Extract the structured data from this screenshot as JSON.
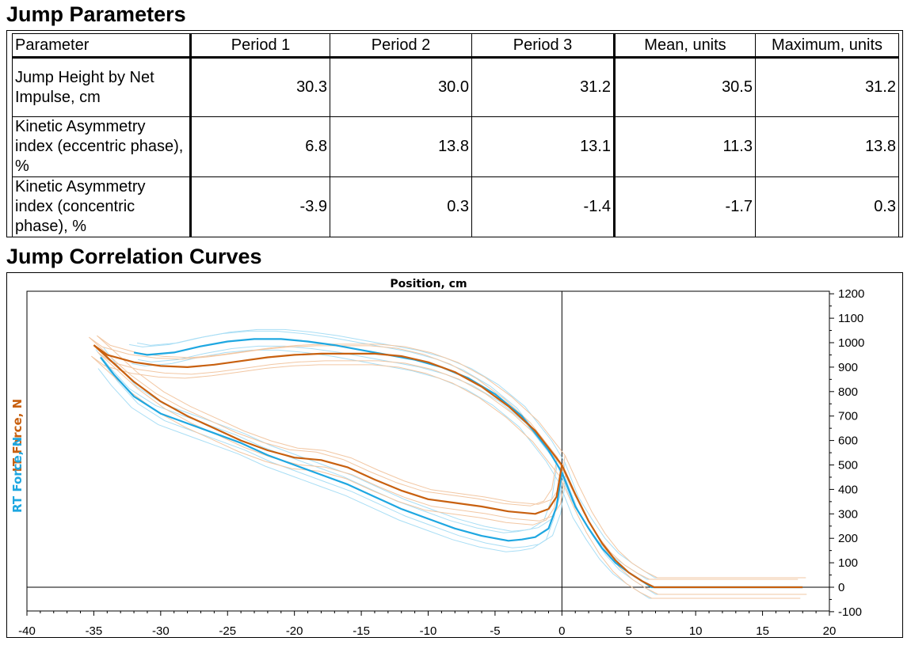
{
  "section1_title": "Jump Parameters",
  "section2_title": "Jump Correlation Curves",
  "table": {
    "headers": [
      "Parameter",
      "Period 1",
      "Period 2",
      "Period 3",
      "Mean, units",
      "Maximum, units"
    ],
    "rows": [
      {
        "label": "Jump Height by Net Impulse, cm",
        "values": [
          "30.3",
          "30.0",
          "31.2",
          "30.5",
          "31.2"
        ]
      },
      {
        "label": "Kinetic Asymmetry index (eccentric phase), %",
        "values": [
          "6.8",
          "13.8",
          "13.1",
          "11.3",
          "13.8"
        ]
      },
      {
        "label": "Kinetic Asymmetry index (concentric phase), %",
        "values": [
          "-3.9",
          "0.3",
          "-1.4",
          "-1.7",
          "0.3"
        ]
      }
    ]
  },
  "chart_data": {
    "type": "line",
    "title": "Position, cm",
    "ylabel_rt": "RT Force, N",
    "ylabel_lt": "LT Force, N",
    "xlim": [
      -40,
      20
    ],
    "ylim": [
      -100,
      1200
    ],
    "x_ticks": [
      -40,
      -35,
      -30,
      -25,
      -20,
      -15,
      -10,
      -5,
      0,
      5,
      10,
      15,
      20
    ],
    "y_ticks": [
      -100,
      0,
      100,
      200,
      300,
      400,
      500,
      600,
      700,
      800,
      900,
      1000,
      1100,
      1200
    ],
    "colors": {
      "rt": "#1ea7e1",
      "lt": "#c8600f",
      "rt_light": "#a9def5",
      "lt_light": "#f2c7a3"
    },
    "series": [
      {
        "name": "RT Force, N",
        "points": [
          [
            -32,
            960
          ],
          [
            -31,
            950
          ],
          [
            -29,
            960
          ],
          [
            -27,
            985
          ],
          [
            -25,
            1005
          ],
          [
            -23,
            1015
          ],
          [
            -21,
            1015
          ],
          [
            -19,
            1005
          ],
          [
            -17,
            990
          ],
          [
            -15,
            970
          ],
          [
            -13,
            950
          ],
          [
            -11,
            930
          ],
          [
            -9,
            900
          ],
          [
            -7,
            855
          ],
          [
            -5,
            790
          ],
          [
            -3,
            700
          ],
          [
            -2,
            630
          ],
          [
            -1,
            560
          ],
          [
            0,
            470
          ],
          [
            1,
            330
          ],
          [
            2,
            240
          ],
          [
            3,
            160
          ],
          [
            4,
            100
          ],
          [
            5,
            60
          ],
          [
            6,
            25
          ],
          [
            6.7,
            0
          ],
          [
            18,
            0
          ]
        ]
      },
      {
        "name": "RT Force, N (eccentric)",
        "points": [
          [
            -34.5,
            940
          ],
          [
            -33.5,
            870
          ],
          [
            -32,
            780
          ],
          [
            -30,
            710
          ],
          [
            -28,
            670
          ],
          [
            -26,
            630
          ],
          [
            -24,
            590
          ],
          [
            -22,
            540
          ],
          [
            -20,
            500
          ],
          [
            -18,
            460
          ],
          [
            -16,
            420
          ],
          [
            -14,
            370
          ],
          [
            -12,
            320
          ],
          [
            -10,
            280
          ],
          [
            -8,
            240
          ],
          [
            -6,
            210
          ],
          [
            -4,
            190
          ],
          [
            -3,
            195
          ],
          [
            -2,
            205
          ],
          [
            -1,
            240
          ],
          [
            -0.4,
            330
          ],
          [
            0,
            470
          ]
        ]
      },
      {
        "name": "LT Force, N",
        "points": [
          [
            -35,
            990
          ],
          [
            -34,
            950
          ],
          [
            -32,
            920
          ],
          [
            -30,
            905
          ],
          [
            -28,
            900
          ],
          [
            -26,
            910
          ],
          [
            -24,
            925
          ],
          [
            -22,
            940
          ],
          [
            -20,
            950
          ],
          [
            -18,
            955
          ],
          [
            -16,
            955
          ],
          [
            -14,
            955
          ],
          [
            -12,
            945
          ],
          [
            -10,
            920
          ],
          [
            -8,
            880
          ],
          [
            -6,
            820
          ],
          [
            -4,
            740
          ],
          [
            -2,
            640
          ],
          [
            0,
            500
          ],
          [
            1,
            380
          ],
          [
            2,
            270
          ],
          [
            3,
            180
          ],
          [
            4,
            110
          ],
          [
            5,
            60
          ],
          [
            6,
            25
          ],
          [
            6.9,
            0
          ],
          [
            18,
            0
          ]
        ]
      },
      {
        "name": "LT Force, N (eccentric)",
        "points": [
          [
            -35,
            990
          ],
          [
            -34,
            940
          ],
          [
            -32,
            840
          ],
          [
            -30,
            760
          ],
          [
            -28,
            700
          ],
          [
            -26,
            650
          ],
          [
            -24,
            600
          ],
          [
            -22,
            560
          ],
          [
            -20,
            530
          ],
          [
            -18,
            520
          ],
          [
            -16,
            490
          ],
          [
            -14,
            440
          ],
          [
            -12,
            395
          ],
          [
            -10,
            360
          ],
          [
            -8,
            345
          ],
          [
            -6,
            330
          ],
          [
            -4,
            310
          ],
          [
            -2,
            300
          ],
          [
            -1,
            320
          ],
          [
            -0.4,
            370
          ],
          [
            0,
            500
          ]
        ]
      }
    ]
  }
}
